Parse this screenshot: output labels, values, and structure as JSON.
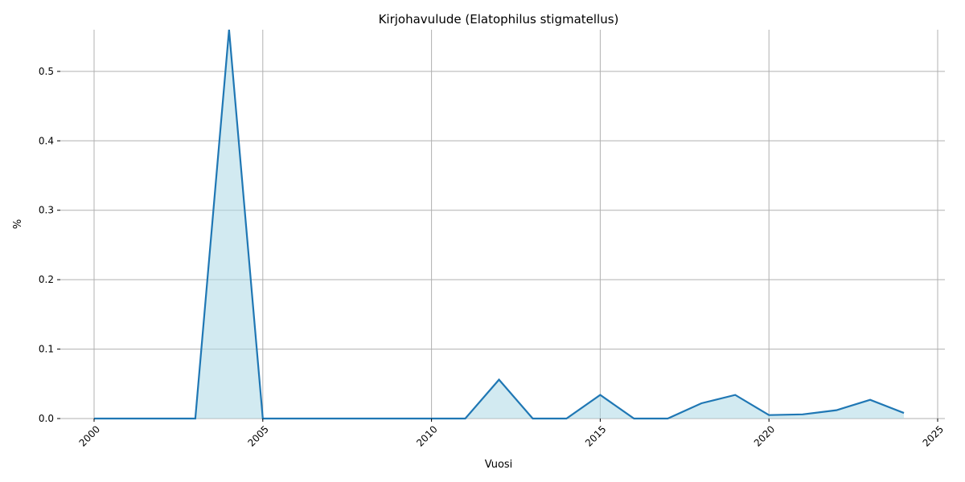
{
  "chart_data": {
    "type": "area",
    "title": "Kirjohavulude (Elatophilus stigmatellus)",
    "xlabel": "Vuosi",
    "ylabel": "%",
    "xlim": [
      2000,
      2025
    ],
    "ylim": [
      0,
      0.56
    ],
    "grid": true,
    "x_ticks": [
      2000,
      2005,
      2010,
      2015,
      2020,
      2025
    ],
    "x_tick_labels": [
      "2000",
      "2005",
      "2010",
      "2015",
      "2020",
      "2025"
    ],
    "y_ticks": [
      0,
      0.1,
      0.2,
      0.3,
      0.4,
      0.5
    ],
    "y_tick_labels": [
      "0.0",
      "0.1",
      "0.2",
      "0.3",
      "0.4",
      "0.5"
    ],
    "series": [
      {
        "x": [
          2000,
          2001,
          2002,
          2003,
          2004,
          2005,
          2006,
          2007,
          2008,
          2009,
          2010,
          2011,
          2012,
          2013,
          2014,
          2015,
          2016,
          2017,
          2018,
          2019,
          2020,
          2021,
          2022,
          2023,
          2024
        ],
        "values": [
          0,
          0,
          0,
          0,
          0.56,
          0,
          0,
          0,
          0,
          0,
          0,
          0,
          0.056,
          0,
          0,
          0.034,
          0,
          0,
          0.022,
          0.034,
          0.005,
          0.006,
          0.012,
          0.027,
          0.008
        ]
      }
    ],
    "colors": {
      "line": "#1f77b4",
      "fill": "#add8e6",
      "grid": "#b0b0b0"
    }
  }
}
